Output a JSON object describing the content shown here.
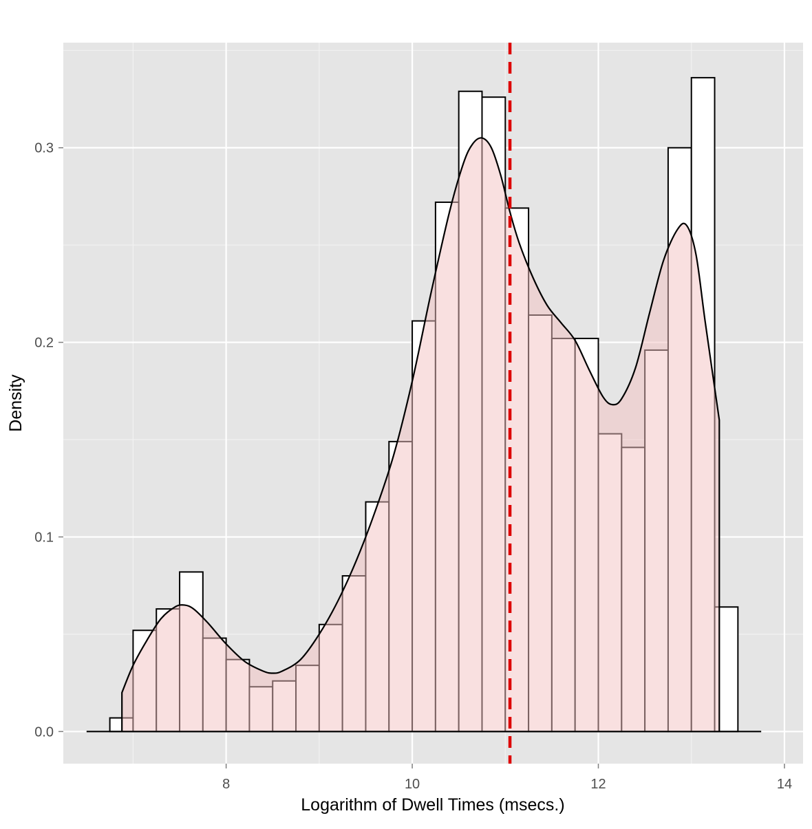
{
  "chart_data": {
    "type": "histogram",
    "title": "",
    "xlabel": "Logarithm of Dwell Times (msecs.)",
    "ylabel": "Density",
    "xlim": [
      6.25,
      14.2
    ],
    "ylim": [
      -0.0165,
      0.354
    ],
    "x_ticks": [
      8,
      10,
      12,
      14
    ],
    "x_tick_labels": [
      "8",
      "10",
      "12",
      "14"
    ],
    "y_ticks": [
      0.0,
      0.1,
      0.2,
      0.3
    ],
    "y_tick_labels": [
      "0.0",
      "0.1",
      "0.2",
      "0.3"
    ],
    "grid": true,
    "bin_width": 0.25,
    "bins": [
      {
        "x0": 6.75,
        "x1": 7.0,
        "density": 0.007
      },
      {
        "x0": 7.0,
        "x1": 7.25,
        "density": 0.052
      },
      {
        "x0": 7.25,
        "x1": 7.5,
        "density": 0.063
      },
      {
        "x0": 7.5,
        "x1": 7.75,
        "density": 0.082
      },
      {
        "x0": 7.75,
        "x1": 8.0,
        "density": 0.048
      },
      {
        "x0": 8.0,
        "x1": 8.25,
        "density": 0.037
      },
      {
        "x0": 8.25,
        "x1": 8.5,
        "density": 0.023
      },
      {
        "x0": 8.5,
        "x1": 8.75,
        "density": 0.026
      },
      {
        "x0": 8.75,
        "x1": 9.0,
        "density": 0.034
      },
      {
        "x0": 9.0,
        "x1": 9.25,
        "density": 0.055
      },
      {
        "x0": 9.25,
        "x1": 9.5,
        "density": 0.08
      },
      {
        "x0": 9.5,
        "x1": 9.75,
        "density": 0.118
      },
      {
        "x0": 9.75,
        "x1": 10.0,
        "density": 0.149
      },
      {
        "x0": 10.0,
        "x1": 10.25,
        "density": 0.211
      },
      {
        "x0": 10.25,
        "x1": 10.5,
        "density": 0.272
      },
      {
        "x0": 10.5,
        "x1": 10.75,
        "density": 0.329
      },
      {
        "x0": 10.75,
        "x1": 11.0,
        "density": 0.326
      },
      {
        "x0": 11.0,
        "x1": 11.25,
        "density": 0.269
      },
      {
        "x0": 11.25,
        "x1": 11.5,
        "density": 0.214
      },
      {
        "x0": 11.5,
        "x1": 11.75,
        "density": 0.202
      },
      {
        "x0": 11.75,
        "x1": 12.0,
        "density": 0.202
      },
      {
        "x0": 12.0,
        "x1": 12.25,
        "density": 0.153
      },
      {
        "x0": 12.25,
        "x1": 12.5,
        "density": 0.146
      },
      {
        "x0": 12.5,
        "x1": 12.75,
        "density": 0.196
      },
      {
        "x0": 12.75,
        "x1": 13.0,
        "density": 0.3
      },
      {
        "x0": 13.0,
        "x1": 13.25,
        "density": 0.336
      },
      {
        "x0": 13.25,
        "x1": 13.5,
        "density": 0.064
      }
    ],
    "density_curve": {
      "x": [
        6.88,
        7.0,
        7.15,
        7.3,
        7.45,
        7.55,
        7.65,
        7.8,
        8.0,
        8.2,
        8.4,
        8.5,
        8.6,
        8.8,
        9.0,
        9.2,
        9.4,
        9.6,
        9.8,
        10.0,
        10.2,
        10.4,
        10.55,
        10.65,
        10.75,
        10.85,
        10.95,
        11.05,
        11.15,
        11.3,
        11.45,
        11.6,
        11.75,
        11.9,
        12.05,
        12.15,
        12.25,
        12.4,
        12.55,
        12.7,
        12.85,
        12.95,
        13.05,
        13.15,
        13.3
      ],
      "y": [
        0.02,
        0.034,
        0.047,
        0.058,
        0.064,
        0.065,
        0.063,
        0.056,
        0.045,
        0.036,
        0.031,
        0.03,
        0.031,
        0.037,
        0.05,
        0.067,
        0.088,
        0.113,
        0.142,
        0.18,
        0.225,
        0.267,
        0.292,
        0.302,
        0.305,
        0.3,
        0.286,
        0.267,
        0.251,
        0.233,
        0.219,
        0.21,
        0.201,
        0.186,
        0.172,
        0.168,
        0.171,
        0.187,
        0.215,
        0.242,
        0.258,
        0.26,
        0.245,
        0.21,
        0.16
      ],
      "baseline_xlim": [
        6.5,
        13.75
      ]
    },
    "mean_line_x": 11.05,
    "colors": {
      "panel_background": "#e5e5e5",
      "grid_major": "#ffffff",
      "grid_minor": "#f2f2f2",
      "bar_fill": "#ffffff",
      "bar_outline": "#000000",
      "density_fill": "#f4c2c2",
      "density_fill_opacity": 0.5,
      "density_line": "#000000",
      "mean_line": "#dd0000"
    }
  }
}
